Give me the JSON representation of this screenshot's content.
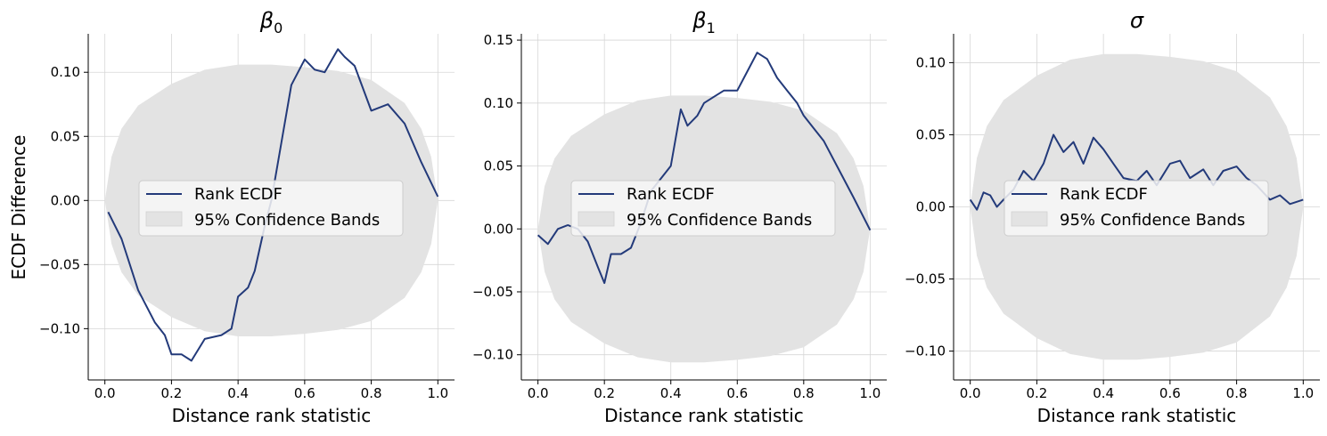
{
  "figure": {
    "shared_ylabel": "ECDF Difference",
    "legend_entries": {
      "line": "Rank ECDF",
      "band": "95% Confidence Bands"
    }
  },
  "colors": {
    "line": "#233a7a",
    "band": "#e3e3e3",
    "grid": "#d6d6d6",
    "legend_bg": "#f7f7f7"
  },
  "chart_data": [
    {
      "type": "line",
      "title": "β",
      "title_sub": "0",
      "xlabel": "Distance rank statistic",
      "ylabel": "ECDF Difference",
      "xlim": [
        -0.05,
        1.05
      ],
      "ylim": [
        -0.14,
        0.13
      ],
      "xticks": [
        0.0,
        0.2,
        0.4,
        0.6,
        0.8,
        1.0
      ],
      "xtick_labels": [
        "0.0",
        "0.2",
        "0.4",
        "0.6",
        "0.8",
        "1.0"
      ],
      "yticks": [
        -0.1,
        -0.05,
        0.0,
        0.05,
        0.1
      ],
      "ytick_labels": [
        "−0.10",
        "−0.05",
        "0.00",
        "0.05",
        "0.10"
      ],
      "grid": true,
      "legend_position": "center-left",
      "band": {
        "x": [
          0.0,
          0.02,
          0.05,
          0.1,
          0.2,
          0.3,
          0.4,
          0.5,
          0.6,
          0.7,
          0.8,
          0.9,
          0.95,
          0.98,
          1.0
        ],
        "upper": [
          0.0,
          0.034,
          0.056,
          0.074,
          0.091,
          0.102,
          0.106,
          0.106,
          0.104,
          0.101,
          0.094,
          0.076,
          0.056,
          0.034,
          0.0
        ],
        "lower": [
          0.0,
          -0.034,
          -0.056,
          -0.074,
          -0.091,
          -0.102,
          -0.106,
          -0.106,
          -0.104,
          -0.101,
          -0.094,
          -0.076,
          -0.056,
          -0.034,
          0.0
        ]
      },
      "series": [
        {
          "name": "Rank ECDF",
          "x": [
            0.01,
            0.05,
            0.1,
            0.15,
            0.18,
            0.2,
            0.23,
            0.26,
            0.3,
            0.35,
            0.38,
            0.4,
            0.43,
            0.45,
            0.48,
            0.5,
            0.53,
            0.56,
            0.6,
            0.63,
            0.66,
            0.7,
            0.72,
            0.75,
            0.8,
            0.85,
            0.9,
            0.95,
            1.0
          ],
          "y": [
            -0.009,
            -0.03,
            -0.07,
            -0.095,
            -0.105,
            -0.12,
            -0.12,
            -0.125,
            -0.108,
            -0.105,
            -0.1,
            -0.075,
            -0.068,
            -0.055,
            -0.02,
            0.0,
            0.045,
            0.09,
            0.11,
            0.102,
            0.1,
            0.118,
            0.112,
            0.105,
            0.07,
            0.075,
            0.06,
            0.03,
            0.003
          ]
        }
      ]
    },
    {
      "type": "line",
      "title": "β",
      "title_sub": "1",
      "xlabel": "Distance rank statistic",
      "ylabel": "",
      "xlim": [
        -0.05,
        1.05
      ],
      "ylim": [
        -0.12,
        0.155
      ],
      "xticks": [
        0.0,
        0.2,
        0.4,
        0.6,
        0.8,
        1.0
      ],
      "xtick_labels": [
        "0.0",
        "0.2",
        "0.4",
        "0.6",
        "0.8",
        "1.0"
      ],
      "yticks": [
        -0.1,
        -0.05,
        0.0,
        0.05,
        0.1,
        0.15
      ],
      "ytick_labels": [
        "−0.10",
        "−0.05",
        "0.00",
        "0.05",
        "0.10",
        "0.15"
      ],
      "grid": true,
      "legend_position": "center",
      "band": {
        "x": [
          0.0,
          0.02,
          0.05,
          0.1,
          0.2,
          0.3,
          0.4,
          0.5,
          0.6,
          0.7,
          0.8,
          0.9,
          0.95,
          0.98,
          1.0
        ],
        "upper": [
          0.0,
          0.034,
          0.056,
          0.074,
          0.091,
          0.102,
          0.106,
          0.106,
          0.104,
          0.101,
          0.094,
          0.076,
          0.056,
          0.034,
          0.0
        ],
        "lower": [
          0.0,
          -0.034,
          -0.056,
          -0.074,
          -0.091,
          -0.102,
          -0.106,
          -0.106,
          -0.104,
          -0.101,
          -0.094,
          -0.076,
          -0.056,
          -0.034,
          0.0
        ]
      },
      "series": [
        {
          "name": "Rank ECDF",
          "x": [
            0.0,
            0.03,
            0.06,
            0.09,
            0.12,
            0.15,
            0.18,
            0.2,
            0.22,
            0.25,
            0.28,
            0.31,
            0.34,
            0.37,
            0.4,
            0.43,
            0.45,
            0.48,
            0.5,
            0.53,
            0.56,
            0.6,
            0.63,
            0.66,
            0.69,
            0.72,
            0.75,
            0.78,
            0.8,
            0.83,
            0.86,
            0.9,
            0.95,
            1.0
          ],
          "y": [
            -0.005,
            -0.012,
            0.0,
            0.003,
            0.0,
            -0.01,
            -0.03,
            -0.043,
            -0.02,
            -0.02,
            -0.015,
            0.005,
            0.03,
            0.04,
            0.05,
            0.095,
            0.082,
            0.09,
            0.1,
            0.105,
            0.11,
            0.11,
            0.125,
            0.14,
            0.135,
            0.12,
            0.11,
            0.1,
            0.09,
            0.08,
            0.07,
            0.05,
            0.025,
            -0.001
          ]
        }
      ]
    },
    {
      "type": "line",
      "title": "σ",
      "title_sub": "",
      "xlabel": "Distance rank statistic",
      "ylabel": "",
      "xlim": [
        -0.05,
        1.05
      ],
      "ylim": [
        -0.12,
        0.12
      ],
      "xticks": [
        0.0,
        0.2,
        0.4,
        0.6,
        0.8,
        1.0
      ],
      "xtick_labels": [
        "0.0",
        "0.2",
        "0.4",
        "0.6",
        "0.8",
        "1.0"
      ],
      "yticks": [
        -0.1,
        -0.05,
        0.0,
        0.05,
        0.1
      ],
      "ytick_labels": [
        "−0.10",
        "−0.05",
        "0.00",
        "0.05",
        "0.10"
      ],
      "grid": true,
      "legend_position": "center",
      "band": {
        "x": [
          0.0,
          0.02,
          0.05,
          0.1,
          0.2,
          0.3,
          0.4,
          0.5,
          0.6,
          0.7,
          0.8,
          0.9,
          0.95,
          0.98,
          1.0
        ],
        "upper": [
          0.0,
          0.034,
          0.056,
          0.074,
          0.091,
          0.102,
          0.106,
          0.106,
          0.104,
          0.101,
          0.094,
          0.076,
          0.056,
          0.034,
          0.0
        ],
        "lower": [
          0.0,
          -0.034,
          -0.056,
          -0.074,
          -0.091,
          -0.102,
          -0.106,
          -0.106,
          -0.104,
          -0.101,
          -0.094,
          -0.076,
          -0.056,
          -0.034,
          0.0
        ]
      },
      "series": [
        {
          "name": "Rank ECDF",
          "x": [
            0.0,
            0.02,
            0.04,
            0.06,
            0.08,
            0.1,
            0.13,
            0.16,
            0.19,
            0.22,
            0.25,
            0.28,
            0.31,
            0.34,
            0.37,
            0.4,
            0.43,
            0.46,
            0.5,
            0.53,
            0.56,
            0.6,
            0.63,
            0.66,
            0.7,
            0.73,
            0.76,
            0.8,
            0.83,
            0.86,
            0.9,
            0.93,
            0.96,
            1.0
          ],
          "y": [
            0.005,
            -0.002,
            0.01,
            0.008,
            0.0,
            0.005,
            0.012,
            0.025,
            0.018,
            0.03,
            0.05,
            0.038,
            0.045,
            0.03,
            0.048,
            0.04,
            0.03,
            0.02,
            0.018,
            0.025,
            0.015,
            0.03,
            0.032,
            0.02,
            0.026,
            0.015,
            0.025,
            0.028,
            0.02,
            0.015,
            0.005,
            0.008,
            0.002,
            0.005
          ]
        }
      ]
    }
  ]
}
